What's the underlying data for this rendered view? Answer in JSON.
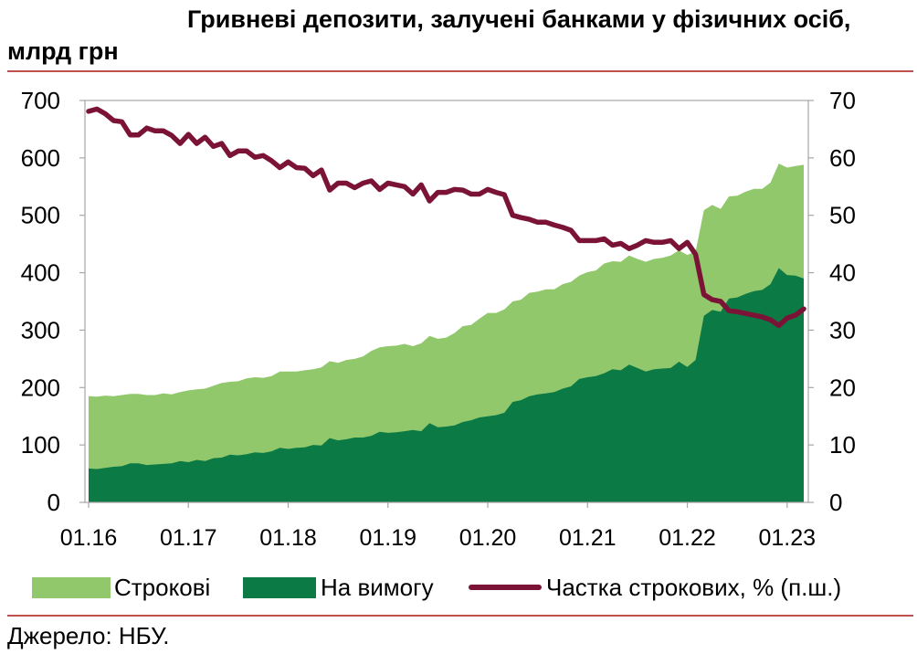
{
  "title": "Гривневі депозити, залучені банками у фізичних осіб, млрд грн",
  "source": "Джерело: НБУ.",
  "colors": {
    "term": "#92c86c",
    "demand": "#0b7a45",
    "share": "#7a1336",
    "rule": "#c0504d",
    "frame": "#a6a6a6"
  },
  "chart_data": {
    "type": "area",
    "stacked": true,
    "title": "Гривневі депозити, залучені банками у фізичних осіб, млрд грн",
    "legend": "bottom",
    "grid": false,
    "y_left": {
      "range": [
        0,
        700
      ],
      "ticks": [
        "0",
        "100",
        "200",
        "300",
        "400",
        "500",
        "600",
        "700"
      ]
    },
    "y_right": {
      "range": [
        0,
        70
      ],
      "ticks": [
        "0",
        "10",
        "20",
        "30",
        "40",
        "50",
        "60",
        "70"
      ]
    },
    "x_ticks": [
      "01.16",
      "01.17",
      "01.18",
      "01.19",
      "01.20",
      "01.21",
      "01.22",
      "01.23"
    ],
    "x": [
      "01.16",
      "02.16",
      "03.16",
      "04.16",
      "05.16",
      "06.16",
      "07.16",
      "08.16",
      "09.16",
      "10.16",
      "11.16",
      "12.16",
      "01.17",
      "02.17",
      "03.17",
      "04.17",
      "05.17",
      "06.17",
      "07.17",
      "08.17",
      "09.17",
      "10.17",
      "11.17",
      "12.17",
      "01.18",
      "02.18",
      "03.18",
      "04.18",
      "05.18",
      "06.18",
      "07.18",
      "08.18",
      "09.18",
      "10.18",
      "11.18",
      "12.18",
      "01.19",
      "02.19",
      "03.19",
      "04.19",
      "05.19",
      "06.19",
      "07.19",
      "08.19",
      "09.19",
      "10.19",
      "11.19",
      "12.19",
      "01.20",
      "02.20",
      "03.20",
      "04.20",
      "05.20",
      "06.20",
      "07.20",
      "08.20",
      "09.20",
      "10.20",
      "11.20",
      "12.20",
      "01.21",
      "02.21",
      "03.21",
      "04.21",
      "05.21",
      "06.21",
      "07.21",
      "08.21",
      "09.21",
      "10.21",
      "11.21",
      "12.21",
      "01.22",
      "02.22",
      "03.22",
      "04.22",
      "05.22",
      "06.22",
      "07.22",
      "08.22",
      "09.22",
      "10.22",
      "11.22",
      "12.22",
      "01.23",
      "02.23",
      "03.23"
    ],
    "series": [
      {
        "name": "Строкові",
        "type": "area",
        "axis": "left",
        "color": "#92c86c",
        "values": [
          126,
          126,
          126,
          123,
          124,
          121,
          121,
          122,
          121,
          123,
          120,
          120,
          125,
          123,
          126,
          126,
          130,
          127,
          129,
          132,
          131,
          131,
          131,
          133,
          135,
          133,
          134,
          132,
          136,
          134,
          135,
          138,
          137,
          141,
          148,
          147,
          151,
          151,
          152,
          146,
          153,
          152,
          154,
          155,
          161,
          167,
          166,
          172,
          180,
          178,
          180,
          175,
          175,
          180,
          179,
          181,
          179,
          182,
          182,
          180,
          183,
          184,
          191,
          188,
          189,
          190,
          190,
          191,
          192,
          193,
          196,
          194,
          195,
          189,
          184,
          183,
          179,
          178,
          177,
          178,
          178,
          176,
          177,
          182,
          187,
          191,
          198
        ]
      },
      {
        "name": "На вимогу",
        "type": "area",
        "axis": "left",
        "color": "#0b7a45",
        "values": [
          59,
          58,
          60,
          62,
          63,
          68,
          68,
          65,
          66,
          67,
          68,
          72,
          70,
          74,
          72,
          77,
          78,
          83,
          82,
          84,
          87,
          86,
          89,
          95,
          93,
          95,
          96,
          100,
          99,
          112,
          108,
          110,
          113,
          113,
          116,
          123,
          121,
          122,
          124,
          126,
          124,
          138,
          131,
          132,
          134,
          140,
          143,
          148,
          150,
          152,
          156,
          175,
          178,
          185,
          188,
          190,
          192,
          198,
          202,
          215,
          218,
          220,
          225,
          232,
          230,
          240,
          234,
          228,
          232,
          233,
          234,
          245,
          236,
          248,
          325,
          335,
          332,
          355,
          357,
          363,
          368,
          370,
          380,
          408,
          396,
          395,
          390
        ]
      },
      {
        "name": "Частка строкових, % (п.ш.)",
        "type": "line",
        "axis": "right",
        "color": "#7a1336",
        "values": [
          68.1,
          68.5,
          67.7,
          66.5,
          66.3,
          64.0,
          64.0,
          65.2,
          64.7,
          64.7,
          63.9,
          62.5,
          64.1,
          62.5,
          63.6,
          62.0,
          62.5,
          60.4,
          61.2,
          61.2,
          60.1,
          60.4,
          59.5,
          58.3,
          59.3,
          58.3,
          58.2,
          56.9,
          57.9,
          54.4,
          55.6,
          55.6,
          54.8,
          55.6,
          56.0,
          54.5,
          55.6,
          55.3,
          55.0,
          53.7,
          55.3,
          52.5,
          54.0,
          54.0,
          54.5,
          54.4,
          53.7,
          53.7,
          54.5,
          54.0,
          53.6,
          50.0,
          49.6,
          49.3,
          48.8,
          48.8,
          48.3,
          47.9,
          47.4,
          45.6,
          45.6,
          45.6,
          45.9,
          44.8,
          45.1,
          44.2,
          44.8,
          45.6,
          45.3,
          45.3,
          45.6,
          44.2,
          45.3,
          43.2,
          36.2,
          35.3,
          35.0,
          33.4,
          33.2,
          32.9,
          32.6,
          32.3,
          31.8,
          30.8,
          32.1,
          32.6,
          33.7
        ]
      }
    ]
  }
}
